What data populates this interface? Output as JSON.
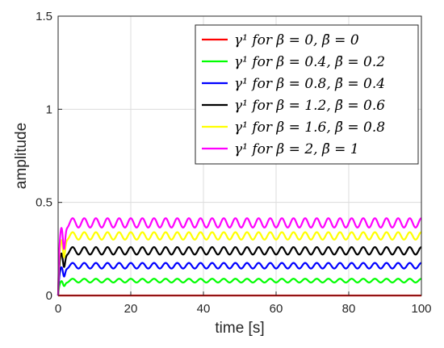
{
  "chart_data": {
    "type": "line",
    "xlabel": "time [s]",
    "ylabel": "amplitude",
    "xlim": [
      0,
      100
    ],
    "ylim": [
      0,
      1.5
    ],
    "xticks": [
      "0",
      "20",
      "40",
      "60",
      "80",
      "100"
    ],
    "yticks": [
      "0",
      "0.5",
      "1",
      "1.5"
    ],
    "grid": true,
    "legend_position": "top-right",
    "series": [
      {
        "name": "γ¹ for β = 0, β̄ = 0",
        "color": "#ff0000",
        "mean": 0.0,
        "osc_amplitude": 0.0
      },
      {
        "name": "γ¹ for β = 0.4, β̄ = 0.2",
        "color": "#00ff00",
        "mean": 0.08,
        "osc_amplitude": 0.01
      },
      {
        "name": "γ¹ for β = 0.8, β̄ = 0.4",
        "color": "#0000ff",
        "mean": 0.16,
        "osc_amplitude": 0.015
      },
      {
        "name": "γ¹ for β = 1.2, β̄ = 0.6",
        "color": "#000000",
        "mean": 0.24,
        "osc_amplitude": 0.02
      },
      {
        "name": "γ¹ for β = 1.6, β̄ = 0.8",
        "color": "#ffff00",
        "mean": 0.32,
        "osc_amplitude": 0.02
      },
      {
        "name": "γ¹ for β = 2, β̄ = 1",
        "color": "#ff00ff",
        "mean": 0.39,
        "osc_amplitude": 0.025
      }
    ],
    "oscillation_period": 3.2
  }
}
